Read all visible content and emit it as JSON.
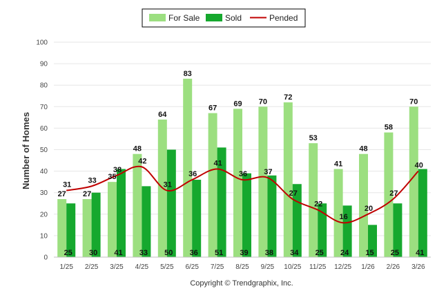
{
  "chart_data": {
    "type": "bar",
    "categories": [
      "1/25",
      "2/25",
      "3/25",
      "4/25",
      "5/25",
      "6/25",
      "7/25",
      "8/25",
      "9/25",
      "10/25",
      "11/25",
      "12/25",
      "1/26",
      "2/26",
      "3/26"
    ],
    "series": [
      {
        "name": "For Sale",
        "type": "bar",
        "color": "#9cdf80",
        "values": [
          27,
          27,
          35,
          48,
          64,
          83,
          67,
          69,
          70,
          72,
          53,
          41,
          48,
          58,
          70
        ]
      },
      {
        "name": "Sold",
        "type": "bar",
        "color": "#16a82e",
        "values": [
          25,
          30,
          41,
          33,
          50,
          36,
          51,
          39,
          38,
          34,
          25,
          24,
          15,
          25,
          41
        ]
      },
      {
        "name": "Pended",
        "type": "line",
        "color": "#c00000",
        "values": [
          31,
          33,
          38,
          42,
          31,
          36,
          41,
          36,
          37,
          27,
          22,
          16,
          20,
          27,
          40
        ]
      }
    ],
    "title": "",
    "xlabel": "",
    "ylabel": "Number of Homes",
    "ylim": [
      0,
      100
    ],
    "yticks": [
      0,
      10,
      20,
      30,
      40,
      50,
      60,
      70,
      80,
      90,
      100
    ],
    "grid": true,
    "legend_position": "top-center"
  },
  "credit": "Copyright © Trendgraphix, Inc."
}
